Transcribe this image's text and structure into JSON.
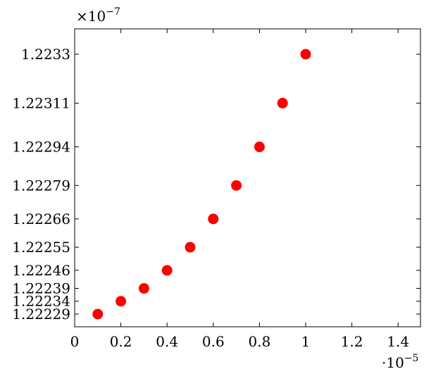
{
  "chart_data": {
    "type": "scatter",
    "title": "",
    "xlabel": "",
    "ylabel": "",
    "x_multiplier_label": "·10",
    "x_multiplier_exp": "−5",
    "y_multiplier_label": "×10",
    "y_multiplier_exp": "−7",
    "xlim": [
      0,
      1.5
    ],
    "ylim": [
      1.22227,
      1.22341
    ],
    "x_ticks": [
      {
        "value": 0,
        "label": "0"
      },
      {
        "value": 0.2,
        "label": "0.2"
      },
      {
        "value": 0.4,
        "label": "0.4"
      },
      {
        "value": 0.6,
        "label": "0.6"
      },
      {
        "value": 0.8,
        "label": "0.8"
      },
      {
        "value": 1.0,
        "label": "1"
      },
      {
        "value": 1.2,
        "label": "1.2"
      },
      {
        "value": 1.4,
        "label": "1.4"
      }
    ],
    "y_ticks": [
      {
        "value": 1.22229,
        "label": "1.22229"
      },
      {
        "value": 1.22234,
        "label": "1.22234"
      },
      {
        "value": 1.22239,
        "label": "1.22239"
      },
      {
        "value": 1.22246,
        "label": "1.22246"
      },
      {
        "value": 1.22255,
        "label": "1.22255"
      },
      {
        "value": 1.22266,
        "label": "1.22266"
      },
      {
        "value": 1.22279,
        "label": "1.22279"
      },
      {
        "value": 1.22294,
        "label": "1.22294"
      },
      {
        "value": 1.22311,
        "label": "1.22311"
      },
      {
        "value": 1.2233,
        "label": "1.2233"
      }
    ],
    "series": [
      {
        "color": "#ff0000",
        "points": [
          {
            "x": 0.1,
            "y": 1.22229
          },
          {
            "x": 0.2,
            "y": 1.22234
          },
          {
            "x": 0.3,
            "y": 1.22239
          },
          {
            "x": 0.4,
            "y": 1.22246
          },
          {
            "x": 0.5,
            "y": 1.22255
          },
          {
            "x": 0.6,
            "y": 1.22266
          },
          {
            "x": 0.7,
            "y": 1.22279
          },
          {
            "x": 0.8,
            "y": 1.22294
          },
          {
            "x": 0.9,
            "y": 1.22311
          },
          {
            "x": 1.0,
            "y": 1.2233
          }
        ]
      }
    ],
    "grid": false,
    "legend": "none"
  }
}
